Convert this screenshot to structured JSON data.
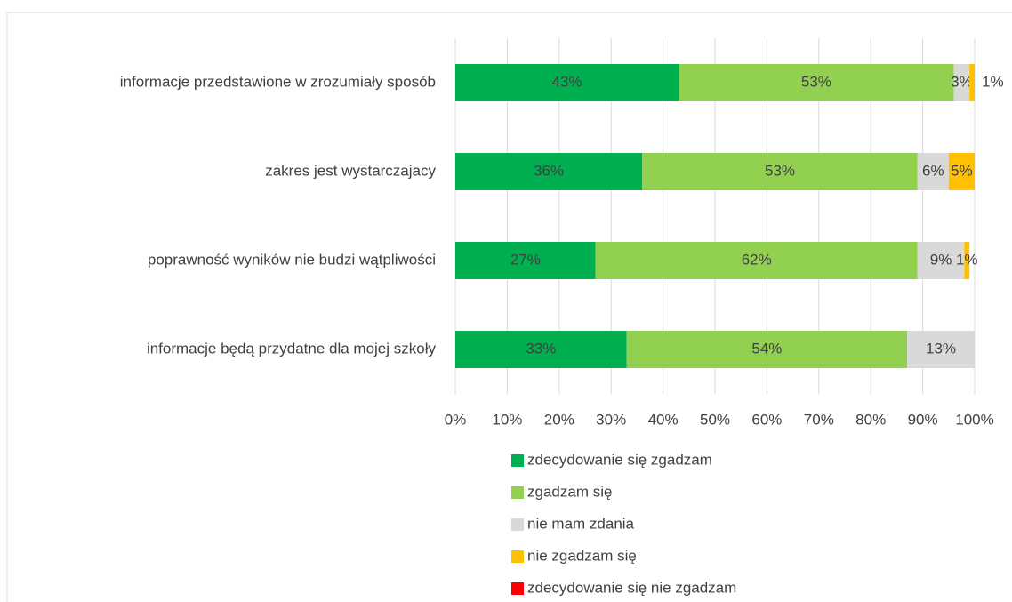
{
  "chart_data": {
    "type": "stacked_bar_horizontal",
    "categories": [
      "informacje przedstawione w zrozumiały sposób",
      "zakres jest wystarczajacy",
      "poprawność wyników nie budzi wątpliwości",
      "informacje będą przydatne dla mojej szkoły"
    ],
    "series": [
      {
        "name": "zdecydowanie się zgadzam",
        "color": "#00b050",
        "values": [
          43,
          36,
          27,
          33
        ],
        "value_labels": [
          "43%",
          "36%",
          "27%",
          "33%"
        ]
      },
      {
        "name": "zgadzam się",
        "color": "#92d050",
        "values": [
          53,
          53,
          62,
          54
        ],
        "value_labels": [
          "53%",
          "53%",
          "62%",
          "54%"
        ]
      },
      {
        "name": "nie mam zdania",
        "color": "#d9d9d9",
        "values": [
          3,
          6,
          9,
          13
        ],
        "value_labels": [
          "3%",
          "6%",
          "9%",
          "13%"
        ]
      },
      {
        "name": "nie zgadzam się",
        "color": "#ffc000",
        "values": [
          1,
          5,
          1,
          null
        ],
        "value_labels": [
          "1%",
          "5%",
          "1%",
          null
        ]
      },
      {
        "name": "zdecydowanie się nie zgadzam",
        "color": "#ff0000",
        "values": [
          null,
          null,
          null,
          null
        ],
        "value_labels": [
          null,
          null,
          null,
          null
        ]
      }
    ],
    "xlim": [
      0,
      100
    ],
    "xticks": [
      {
        "value": 0,
        "label": "0%"
      },
      {
        "value": 10,
        "label": "10%"
      },
      {
        "value": 20,
        "label": "20%"
      },
      {
        "value": 30,
        "label": "30%"
      },
      {
        "value": 40,
        "label": "40%"
      },
      {
        "value": 50,
        "label": "50%"
      },
      {
        "value": 60,
        "label": "60%"
      },
      {
        "value": 70,
        "label": "70%"
      },
      {
        "value": 80,
        "label": "80%"
      },
      {
        "value": 90,
        "label": "90%"
      },
      {
        "value": 100,
        "label": "100%"
      }
    ],
    "grid": true,
    "legend": "bottom"
  }
}
